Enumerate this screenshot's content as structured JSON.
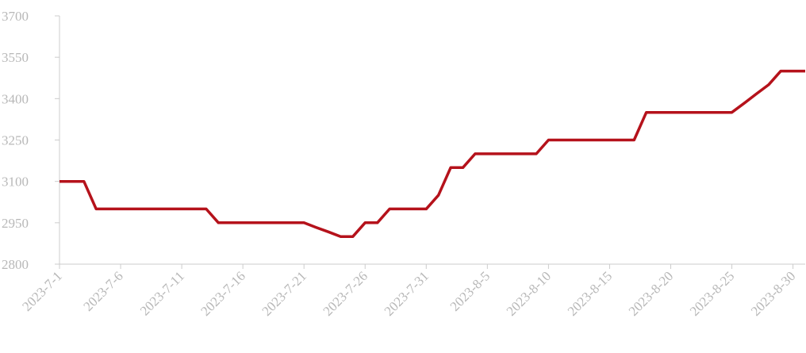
{
  "chart_data": {
    "type": "line",
    "categories": [
      "2023-7-1",
      null,
      null,
      null,
      null,
      "2023-7-6",
      null,
      null,
      null,
      null,
      "2023-7-11",
      null,
      null,
      null,
      null,
      "2023-7-16",
      null,
      null,
      null,
      null,
      "2023-7-21",
      null,
      null,
      null,
      null,
      "2023-7-26",
      null,
      null,
      null,
      null,
      "2023-7-31",
      null,
      null,
      null,
      null,
      "2023-8-5",
      null,
      null,
      null,
      null,
      "2023-8-10",
      null,
      null,
      null,
      null,
      "2023-8-15",
      null,
      null,
      null,
      null,
      "2023-8-20",
      null,
      null,
      null,
      null,
      "2023-8-25",
      null,
      null,
      null,
      null,
      "2023-8-30",
      null
    ],
    "series": [
      {
        "color": "#b5121b",
        "values": [
          3100,
          3100,
          3100,
          3000,
          3000,
          3000,
          3000,
          3000,
          3000,
          3000,
          3000,
          3000,
          3000,
          2950,
          2950,
          2950,
          2950,
          2950,
          2950,
          2950,
          2950,
          2933,
          2917,
          2900,
          2900,
          2950,
          2950,
          3000,
          3000,
          3000,
          3000,
          3050,
          3150,
          3150,
          3200,
          3200,
          3200,
          3200,
          3200,
          3200,
          3250,
          3250,
          3250,
          3250,
          3250,
          3250,
          3250,
          3250,
          3350,
          3350,
          3350,
          3350,
          3350,
          3350,
          3350,
          3350,
          3383,
          3417,
          3450,
          3500,
          3500,
          3500
        ]
      }
    ],
    "ylim": [
      2800,
      3700
    ],
    "yticks": [
      2800,
      2950,
      3100,
      3250,
      3400,
      3550,
      3700
    ]
  }
}
